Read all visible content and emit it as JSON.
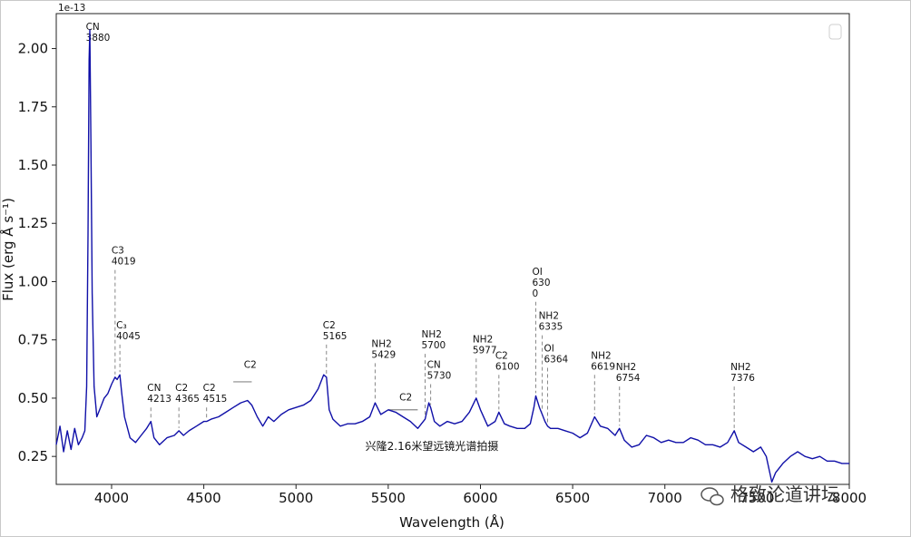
{
  "chart_data": {
    "type": "line",
    "title": "",
    "xlabel": "Wavelength (Å)",
    "ylabel": "Flux (erg Å s⁻¹)",
    "scale_label": "1e-13",
    "xlim": [
      3700,
      8000
    ],
    "ylim": [
      0.13,
      2.15
    ],
    "xticks": [
      4000,
      4500,
      5000,
      5500,
      6000,
      6500,
      7000,
      7500,
      8000
    ],
    "xtick_labels": [
      "4000",
      "4500",
      "5000",
      "5500",
      "6000",
      "6500",
      "7000",
      "7500",
      "8000"
    ],
    "yticks": [
      0.25,
      0.5,
      0.75,
      1.0,
      1.25,
      1.5,
      1.75,
      2.0
    ],
    "ytick_labels": [
      "0.25",
      "0.50",
      "0.75",
      "1.00",
      "1.25",
      "1.50",
      "1.75",
      "2.00"
    ],
    "line_color": "#1010a8",
    "series": [
      {
        "name": "spectrum",
        "x": [
          3700,
          3720,
          3740,
          3760,
          3780,
          3800,
          3820,
          3840,
          3855,
          3865,
          3872,
          3878,
          3882,
          3888,
          3895,
          3905,
          3920,
          3940,
          3960,
          3980,
          4000,
          4019,
          4030,
          4045,
          4055,
          4070,
          4100,
          4130,
          4160,
          4190,
          4213,
          4230,
          4260,
          4300,
          4340,
          4365,
          4390,
          4420,
          4460,
          4500,
          4515,
          4540,
          4580,
          4620,
          4660,
          4700,
          4737,
          4760,
          4790,
          4820,
          4850,
          4880,
          4920,
          4960,
          5000,
          5040,
          5080,
          5120,
          5150,
          5165,
          5180,
          5200,
          5240,
          5280,
          5320,
          5360,
          5400,
          5429,
          5460,
          5500,
          5540,
          5580,
          5620,
          5660,
          5700,
          5720,
          5730,
          5750,
          5780,
          5820,
          5860,
          5900,
          5940,
          5977,
          6000,
          6040,
          6080,
          6100,
          6130,
          6160,
          6200,
          6240,
          6270,
          6290,
          6300,
          6320,
          6335,
          6350,
          6364,
          6380,
          6420,
          6460,
          6500,
          6540,
          6580,
          6619,
          6650,
          6690,
          6730,
          6754,
          6780,
          6820,
          6860,
          6900,
          6940,
          6980,
          7020,
          7060,
          7100,
          7140,
          7180,
          7220,
          7260,
          7300,
          7340,
          7376,
          7400,
          7440,
          7480,
          7520,
          7550,
          7580,
          7600,
          7640,
          7680,
          7720,
          7760,
          7800,
          7840,
          7880,
          7920,
          7960,
          8000
        ],
        "y": [
          0.3,
          0.38,
          0.27,
          0.36,
          0.28,
          0.37,
          0.3,
          0.33,
          0.36,
          0.55,
          1.2,
          1.95,
          2.08,
          1.6,
          0.95,
          0.55,
          0.42,
          0.46,
          0.5,
          0.52,
          0.56,
          0.59,
          0.58,
          0.6,
          0.52,
          0.42,
          0.33,
          0.31,
          0.34,
          0.37,
          0.4,
          0.33,
          0.3,
          0.33,
          0.34,
          0.36,
          0.34,
          0.36,
          0.38,
          0.4,
          0.4,
          0.41,
          0.42,
          0.44,
          0.46,
          0.48,
          0.49,
          0.47,
          0.42,
          0.38,
          0.42,
          0.4,
          0.43,
          0.45,
          0.46,
          0.47,
          0.49,
          0.54,
          0.6,
          0.59,
          0.45,
          0.41,
          0.38,
          0.39,
          0.39,
          0.4,
          0.42,
          0.48,
          0.43,
          0.45,
          0.44,
          0.42,
          0.4,
          0.37,
          0.41,
          0.48,
          0.46,
          0.4,
          0.38,
          0.4,
          0.39,
          0.4,
          0.44,
          0.5,
          0.45,
          0.38,
          0.4,
          0.44,
          0.39,
          0.38,
          0.37,
          0.37,
          0.39,
          0.46,
          0.51,
          0.46,
          0.43,
          0.4,
          0.38,
          0.37,
          0.37,
          0.36,
          0.35,
          0.33,
          0.35,
          0.42,
          0.38,
          0.37,
          0.34,
          0.37,
          0.32,
          0.29,
          0.3,
          0.34,
          0.33,
          0.31,
          0.32,
          0.31,
          0.31,
          0.33,
          0.32,
          0.3,
          0.3,
          0.29,
          0.31,
          0.36,
          0.31,
          0.29,
          0.27,
          0.29,
          0.25,
          0.14,
          0.18,
          0.22,
          0.25,
          0.27,
          0.25,
          0.24,
          0.25,
          0.23,
          0.23,
          0.22,
          0.22
        ]
      }
    ],
    "annotations": [
      {
        "lines": [
          "CN",
          "3880"
        ],
        "x": 3880,
        "y": 2.08,
        "marker": false
      },
      {
        "lines": [
          "C3",
          "4019"
        ],
        "x": 4019,
        "y": 1.12,
        "marker": true
      },
      {
        "lines": [
          "C₃",
          "4045"
        ],
        "x": 4045,
        "y": 0.8,
        "marker": true
      },
      {
        "lines": [
          "CN",
          "4213"
        ],
        "x": 4213,
        "y": 0.53,
        "marker": true
      },
      {
        "lines": [
          "C2",
          "4365"
        ],
        "x": 4365,
        "y": 0.53,
        "marker": true
      },
      {
        "lines": [
          "C2",
          "4515"
        ],
        "x": 4515,
        "y": 0.53,
        "marker": true
      },
      {
        "lines": [
          "C2"
        ],
        "x": 4737,
        "y": 0.63,
        "marker": false
      },
      {
        "lines": [
          "C2",
          "5165"
        ],
        "x": 5165,
        "y": 0.8,
        "marker": true
      },
      {
        "lines": [
          "NH2",
          "5429"
        ],
        "x": 5429,
        "y": 0.72,
        "marker": true
      },
      {
        "lines": [
          "C2"
        ],
        "x": 5580,
        "y": 0.49,
        "marker": false
      },
      {
        "lines": [
          "NH2",
          "5700"
        ],
        "x": 5700,
        "y": 0.76,
        "marker": true
      },
      {
        "lines": [
          "CN",
          "5730"
        ],
        "x": 5730,
        "y": 0.63,
        "marker": true
      },
      {
        "lines": [
          "NH2",
          "5977"
        ],
        "x": 5977,
        "y": 0.74,
        "marker": true
      },
      {
        "lines": [
          "C2",
          "6100"
        ],
        "x": 6100,
        "y": 0.67,
        "marker": true
      },
      {
        "lines": [
          "OI",
          "630",
          "0"
        ],
        "x": 6300,
        "y": 1.03,
        "marker": true
      },
      {
        "lines": [
          "NH2",
          "6335"
        ],
        "x": 6335,
        "y": 0.84,
        "marker": true
      },
      {
        "lines": [
          "OI",
          "6364"
        ],
        "x": 6364,
        "y": 0.7,
        "marker": true
      },
      {
        "lines": [
          "NH2",
          "6619"
        ],
        "x": 6619,
        "y": 0.67,
        "marker": true
      },
      {
        "lines": [
          "NH2",
          "6754"
        ],
        "x": 6754,
        "y": 0.62,
        "marker": true
      },
      {
        "lines": [
          "NH2",
          "7376"
        ],
        "x": 7376,
        "y": 0.62,
        "marker": true
      }
    ],
    "c2_bands": [
      [
        4660,
        4760
      ],
      [
        5500,
        5660
      ]
    ],
    "caption": "兴隆2.16米望远镜光谱拍摄",
    "watermark": "格致论道讲坛"
  }
}
